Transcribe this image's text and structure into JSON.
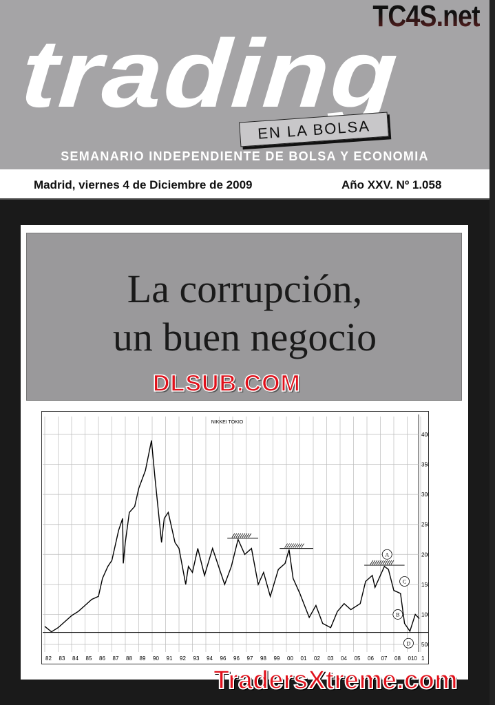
{
  "masthead": {
    "site_watermark": "TC4S.net",
    "logo": "trading",
    "sublogo": "EN LA BOLSA",
    "tagline": "SEMANARIO INDEPENDIENTE DE BOLSA Y ECONOMIA"
  },
  "dateline": {
    "date": "Madrid, viernes 4 de Diciembre de 2009",
    "issue": "Año XXV. Nº 1.058"
  },
  "headline": {
    "line1": "La corrupción,",
    "line2": "un buen negocio"
  },
  "watermarks": {
    "top": "DLSUB.COM",
    "bottom": "TradersXtreme.com"
  },
  "chart_data": {
    "type": "line",
    "title": "NIKKEI TOKIO",
    "x_tick_labels": [
      "82",
      "83",
      "84",
      "85",
      "86",
      "87",
      "88",
      "89",
      "90",
      "91",
      "92",
      "93",
      "94",
      "96",
      "96",
      "97",
      "98",
      "99",
      "00",
      "01",
      "02",
      "03",
      "04",
      "05",
      "06",
      "07",
      "08",
      "010",
      "1"
    ],
    "y_tick_labels": [
      "40000",
      "35000",
      "30000",
      "25000",
      "20000",
      "15000",
      "10000",
      "5000"
    ],
    "ylim": [
      3500,
      43000
    ],
    "grid": true,
    "series": [
      {
        "x": [
          1982.0,
          1982.5,
          1983,
          1984,
          1984.5,
          1985,
          1985.5,
          1986,
          1986.3,
          1986.7,
          1987,
          1987.5,
          1987.8,
          1987.85,
          1988,
          1988.3,
          1988.7,
          1989,
          1989.5,
          1989.95,
          1990.2,
          1990.7,
          1990.9,
          1991.2,
          1991.7,
          1992,
          1992.5,
          1992.7,
          1993,
          1993.4,
          1993.9,
          1994.5,
          1995.4,
          1995.9,
          1996.4,
          1996.9,
          1997.4,
          1997.9,
          1998.3,
          1998.8,
          1999.4,
          1999.9,
          2000.2,
          2000.5,
          2001,
          2001.7,
          2002.2,
          2002.7,
          2003.3,
          2003.8,
          2004.3,
          2004.8,
          2005.5,
          2005.9,
          2006.4,
          2006.6,
          2007.3,
          2007.6,
          2008.0,
          2008.5,
          2008.8,
          2009.2,
          2009.6,
          2009.9
        ],
        "y": [
          8000,
          7100,
          7800,
          9800,
          10500,
          11500,
          12500,
          13000,
          16000,
          18000,
          19000,
          24000,
          26000,
          18500,
          22000,
          27000,
          28000,
          31000,
          34000,
          39000,
          33000,
          22000,
          26000,
          27000,
          22000,
          21000,
          15000,
          18000,
          17000,
          21000,
          16500,
          21000,
          15000,
          18000,
          22500,
          20000,
          21000,
          15000,
          17000,
          13000,
          17500,
          18500,
          20800,
          16000,
          13500,
          9500,
          11500,
          8500,
          7800,
          10500,
          11800,
          10800,
          11800,
          15500,
          16500,
          14500,
          18000,
          17500,
          14000,
          13500,
          8500,
          7200,
          10000,
          9300
        ]
      }
    ],
    "annotations": {
      "support_level": 7000,
      "resistances": [
        {
          "from": 1995.6,
          "to": 1997.9,
          "level": 22700
        },
        {
          "from": 1999.5,
          "to": 2002.0,
          "level": 21000
        },
        {
          "from": 2005.8,
          "to": 2008.8,
          "level": 18200
        }
      ],
      "labels": [
        {
          "text": "A",
          "x": 2007.5,
          "y": 20000
        },
        {
          "text": "B",
          "x": 2008.3,
          "y": 10000
        },
        {
          "text": "C",
          "x": 2008.8,
          "y": 15500
        },
        {
          "text": "D",
          "x": 2009.1,
          "y": 5200
        }
      ]
    }
  }
}
